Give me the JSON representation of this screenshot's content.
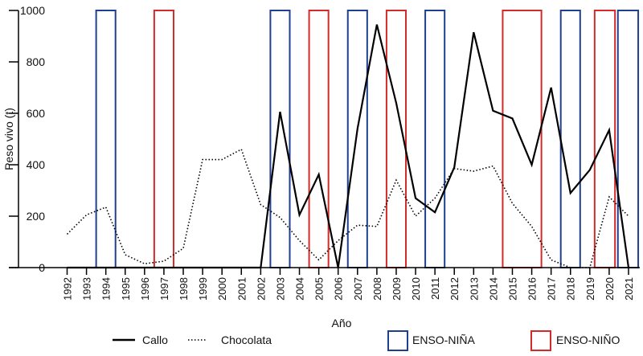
{
  "chart_data": {
    "type": "line",
    "xlabel": "Año",
    "ylabel": "Peso vivo (t)",
    "ylim": [
      0,
      1000
    ],
    "yticks": [
      0,
      200,
      400,
      600,
      800,
      1000
    ],
    "x": [
      1992,
      1993,
      1994,
      1995,
      1996,
      1997,
      1998,
      1999,
      2000,
      2001,
      2002,
      2003,
      2004,
      2005,
      2006,
      2007,
      2008,
      2009,
      2010,
      2011,
      2012,
      2013,
      2014,
      2015,
      2016,
      2017,
      2018,
      2019,
      2020,
      2021
    ],
    "grid": false,
    "legend_placement": "bottom",
    "series": [
      {
        "name": "Callo",
        "style": "solid",
        "color": "#000000",
        "values": [
          0,
          0,
          0,
          0,
          0,
          0,
          0,
          0,
          0,
          0,
          0,
          606,
          205,
          362,
          0,
          540,
          945,
          640,
          270,
          215,
          390,
          915,
          610,
          580,
          400,
          700,
          290,
          380,
          535,
          0
        ]
      },
      {
        "name": "Chocolata",
        "style": "dotted",
        "color": "#000000",
        "values": [
          130,
          205,
          235,
          50,
          15,
          25,
          75,
          420,
          420,
          460,
          245,
          195,
          105,
          30,
          105,
          165,
          160,
          340,
          200,
          270,
          385,
          375,
          395,
          250,
          160,
          30,
          0,
          0,
          275,
          200
        ]
      }
    ],
    "enso_periods": [
      {
        "name": "ENSO-NIÑA",
        "color": "#1f3f8f",
        "ranges": [
          [
            1993.5,
            1994.5
          ],
          [
            2002.5,
            2003.5
          ],
          [
            2006.5,
            2007.5
          ],
          [
            2010.5,
            2011.5
          ],
          [
            2017.5,
            2018.5
          ],
          [
            2020.45,
            2021.5
          ]
        ]
      },
      {
        "name": "ENSO-NIÑO",
        "color": "#d42a2a",
        "ranges": [
          [
            1996.5,
            1997.5
          ],
          [
            2004.5,
            2005.5
          ],
          [
            2008.5,
            2009.5
          ],
          [
            2014.5,
            2016.5
          ],
          [
            2019.25,
            2020.3
          ]
        ]
      }
    ]
  }
}
